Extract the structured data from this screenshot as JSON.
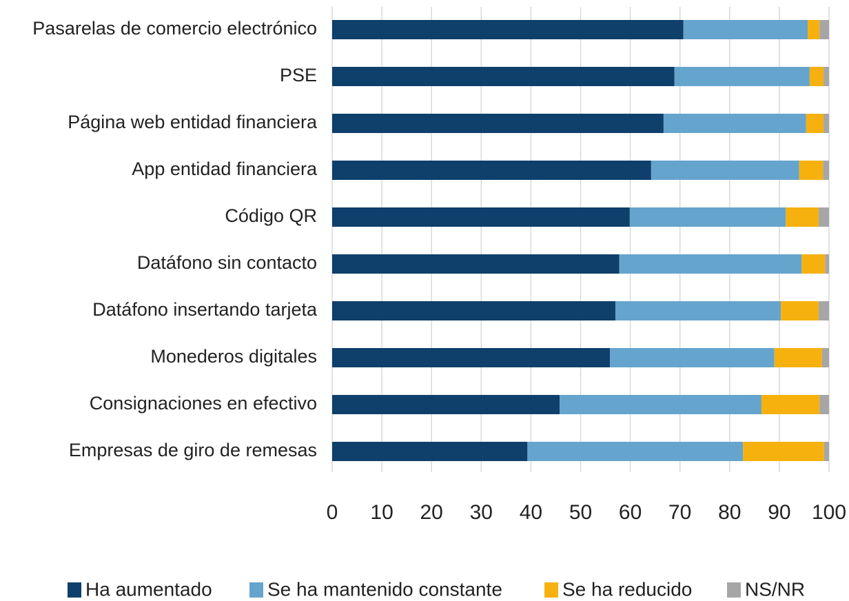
{
  "chart_data": {
    "type": "bar",
    "orientation": "horizontal",
    "stacked": true,
    "grid": true,
    "legend": "bottom",
    "categories": [
      "Pasarelas de comercio electrónico",
      "PSE",
      "Página web entidad financiera",
      "App entidad financiera",
      "Código QR",
      "Datáfono sin contacto",
      "Datáfono insertando tarjeta",
      "Monederos digitales",
      "Consignaciones en efectivo",
      "Empresas de giro de remesas"
    ],
    "series": [
      {
        "name": "Ha aumentado",
        "color": "#0f3f6b",
        "values": [
          70.7,
          68.9,
          66.7,
          64.2,
          59.9,
          57.8,
          57.0,
          55.9,
          45.8,
          39.3
        ]
      },
      {
        "name": "Se ha mantenido constante",
        "color": "#65a4cd",
        "values": [
          25.0,
          27.2,
          28.7,
          29.8,
          31.4,
          36.7,
          33.3,
          33.1,
          40.6,
          43.4
        ]
      },
      {
        "name": "Se ha reducido",
        "color": "#f6b10f",
        "values": [
          2.4,
          2.8,
          3.5,
          4.8,
          6.6,
          4.7,
          7.6,
          9.6,
          11.7,
          16.3
        ]
      },
      {
        "name": "NS/NR",
        "color": "#a6a6a6",
        "values": [
          1.9,
          1.1,
          1.1,
          1.2,
          2.1,
          0.8,
          2.1,
          1.4,
          1.9,
          1.0
        ]
      }
    ],
    "xlim": [
      0,
      100
    ],
    "xticks": [
      0,
      10,
      20,
      30,
      40,
      50,
      60,
      70,
      80,
      90,
      100
    ]
  }
}
